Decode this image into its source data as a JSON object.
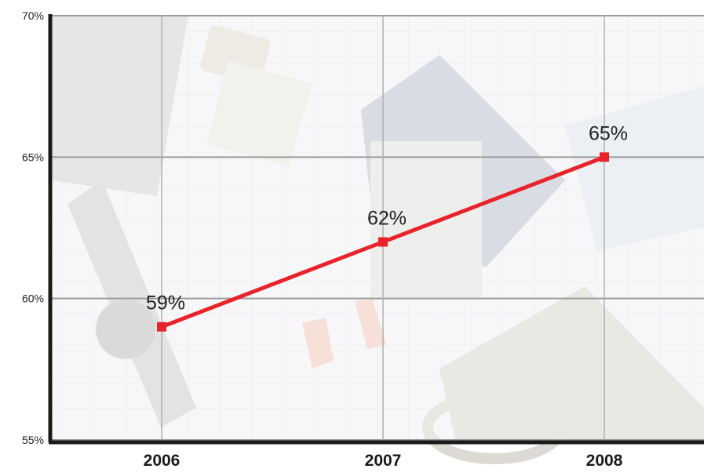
{
  "chart_data": {
    "type": "line",
    "categories": [
      "2006",
      "2007",
      "2008"
    ],
    "series": [
      {
        "values": [
          59,
          62,
          65
        ]
      }
    ],
    "data_labels": [
      "59%",
      "62%",
      "65%"
    ],
    "y_ticks": [
      55,
      60,
      65,
      70
    ],
    "y_tick_labels": [
      "55%",
      "60%",
      "65%",
      "70%"
    ],
    "ylim": [
      55,
      70
    ],
    "grid": true,
    "line_color": "#e8232a",
    "marker": "square",
    "background": "photo of home-renovation tools and a floor plan"
  }
}
